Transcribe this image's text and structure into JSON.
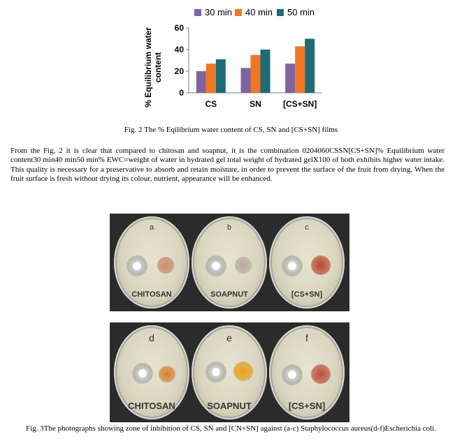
{
  "chart_data": {
    "type": "bar",
    "categories": [
      "CS",
      "SN",
      "[CS+SN]"
    ],
    "series": [
      {
        "name": "30 min",
        "values": [
          20,
          23,
          27
        ],
        "color": "#8064a2"
      },
      {
        "name": "40 min",
        "values": [
          27,
          35,
          43
        ],
        "color": "#f07822"
      },
      {
        "name": "50 min",
        "values": [
          31,
          40,
          50
        ],
        "color": "#1f6b75"
      }
    ],
    "ylabel": "% Equilibrium water content",
    "xlabel": "",
    "ylim": [
      0,
      60
    ],
    "yticks": [
      0,
      20,
      40,
      60
    ],
    "grid": false,
    "legend": "top"
  },
  "fig2_caption": "Fig. 2 The % Eqilibrium water content of   CS, SN and [CS+SN] films",
  "paragraph": "From the Fig. 2 it is clear that compared to chitosan and soapnut, it is the combination 0204060CSSN[CS+SN]% Equilibrium water content30 min40 min50 min% EWC=weight of water in hydrated gel total weight of hydrated gelX100 of both exhibits higher water intake. This quality is necessary for a preservative to absorb and retain moisture, in order to prevent the surface of the fruit from drying. When the fruit surface is fresh without drying its colour, nutrient, appearance will be enhanced.",
  "photos": {
    "row1": [
      {
        "letter": "a",
        "label": "CHITOSAN"
      },
      {
        "letter": "b",
        "label": "SOAPNUT"
      },
      {
        "letter": "c",
        "label": "[CS+SN]"
      }
    ],
    "row2": [
      {
        "letter": "d",
        "label": "CHITOSAN"
      },
      {
        "letter": "e",
        "label": "SOAPNUT"
      },
      {
        "letter": "f",
        "label": "[CS+SN]"
      }
    ]
  },
  "fig3_caption": "Fig. 3The photographs showing zone of inhibition of CS, SN and [CN+SN] against (a-c) Staphylococcus aureus(d-f)Escherichia coli."
}
